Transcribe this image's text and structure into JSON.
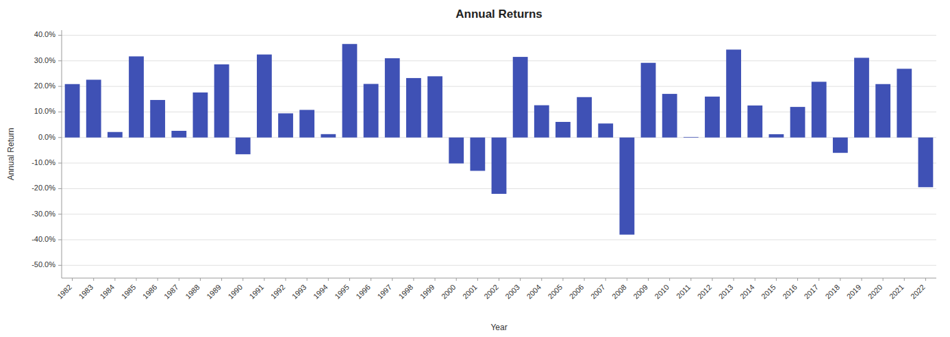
{
  "chart_data": {
    "type": "bar",
    "title": "Annual Returns",
    "x_label": "Year",
    "y_label": "Annual Return",
    "categories": [
      "1982",
      "1983",
      "1984",
      "1985",
      "1986",
      "1987",
      "1988",
      "1989",
      "1990",
      "1991",
      "1992",
      "1993",
      "1994",
      "1995",
      "1996",
      "1997",
      "1998",
      "1999",
      "2000",
      "2001",
      "2002",
      "2003",
      "2004",
      "2005",
      "2006",
      "2007",
      "2008",
      "2009",
      "2010",
      "2011",
      "2012",
      "2013",
      "2014",
      "2015",
      "2016",
      "2017",
      "2018",
      "2019",
      "2020",
      "2021",
      "2022"
    ],
    "values": [
      0.209,
      0.226,
      0.0215,
      0.3173,
      0.1468,
      0.0261,
      0.1761,
      0.2861,
      -0.0656,
      0.3247,
      0.0945,
      0.108,
      0.0132,
      0.3658,
      0.2096,
      0.31,
      0.2326,
      0.2395,
      -0.1014,
      -0.1304,
      -0.2204,
      0.3153,
      0.1262,
      0.061,
      0.158,
      0.0548,
      -0.38,
      0.2921,
      0.1706,
      0.0021,
      0.16,
      0.3439,
      0.1252,
      0.0129,
      0.1196,
      0.218,
      -0.0601,
      0.3118,
      0.209,
      0.2689,
      -0.1944
    ],
    "color": "#3f51b5",
    "ylim": [
      -0.55,
      0.42
    ],
    "yticks": [
      {
        "value": -0.5,
        "label": "-50.0%"
      },
      {
        "value": -0.4,
        "label": "-40.0%"
      },
      {
        "value": -0.3,
        "label": "-30.0%"
      },
      {
        "value": -0.2,
        "label": "-20.0%"
      },
      {
        "value": -0.1,
        "label": "-10.0%"
      },
      {
        "value": 0.0,
        "label": "0.0%"
      },
      {
        "value": 0.1,
        "label": "10.0%"
      },
      {
        "value": 0.2,
        "label": "20.0%"
      },
      {
        "value": 0.3,
        "label": "30.0%"
      },
      {
        "value": 0.4,
        "label": "40.0%"
      }
    ],
    "grid": true
  }
}
